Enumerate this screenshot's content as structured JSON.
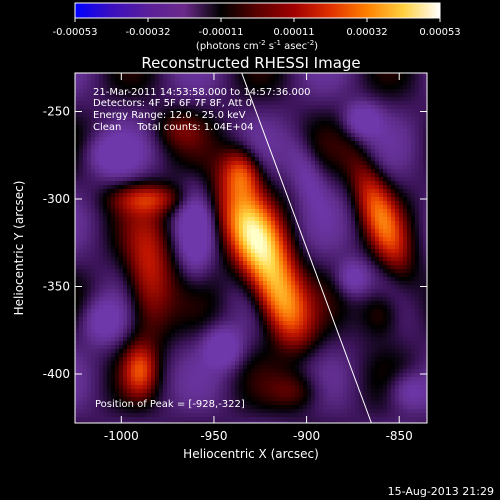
{
  "colorbar": {
    "ticks": [
      "-0.00053",
      "-0.00032",
      "-0.00011",
      "0.00011",
      "0.00032",
      "0.00053"
    ],
    "units_prefix": "(photons cm",
    "units_exp1": "-2",
    "units_mid1": " s",
    "units_exp2": "-1",
    "units_mid2": " asec",
    "units_exp3": "-2",
    "units_suffix": ")",
    "gradient": [
      "#0000ff",
      "#3b0fbf",
      "#5a1f9a",
      "#6b2a8a",
      "#000000",
      "#5a0000",
      "#a00000",
      "#e03000",
      "#ff8000",
      "#ffd040",
      "#ffffff"
    ]
  },
  "chart_data": {
    "type": "heatmap",
    "title": "Reconstructed RHESSI Image",
    "xlabel": "Heliocentric X (arcsec)",
    "ylabel": "Heliocentric Y (arcsec)",
    "xlim": [
      -1025,
      -835
    ],
    "ylim": [
      -428,
      -228
    ],
    "xticks": [
      -1000,
      -950,
      -900,
      -850
    ],
    "yticks": [
      -400,
      -350,
      -300,
      -250
    ],
    "xtick_labels": [
      "-1000",
      "-950",
      "-900",
      "-850"
    ],
    "ytick_labels": [
      "-400",
      "-350",
      "-300",
      "-250"
    ],
    "color_range": [
      -0.00053,
      0.00053
    ],
    "sources": [
      {
        "x": -928,
        "y": -322,
        "sx": 10,
        "sy": 22,
        "rot": -25,
        "amp": 1.0
      },
      {
        "x": -913,
        "y": -360,
        "sx": 9,
        "sy": 18,
        "rot": -20,
        "amp": 0.75
      },
      {
        "x": -935,
        "y": -285,
        "sx": 7,
        "sy": 10,
        "rot": -10,
        "amp": 0.55
      },
      {
        "x": -860,
        "y": -310,
        "sx": 7,
        "sy": 25,
        "rot": -20,
        "amp": 0.6
      },
      {
        "x": -985,
        "y": -345,
        "sx": 9,
        "sy": 25,
        "rot": 0,
        "amp": 0.5
      },
      {
        "x": -990,
        "y": -398,
        "sx": 6,
        "sy": 10,
        "rot": 0,
        "amp": 0.45
      },
      {
        "x": -985,
        "y": -300,
        "sx": 14,
        "sy": 6,
        "rot": 0,
        "amp": 0.4
      },
      {
        "x": -860,
        "y": -365,
        "sx": 8,
        "sy": 10,
        "rot": 0,
        "amp": 0.3
      },
      {
        "x": -970,
        "y": -260,
        "sx": 10,
        "sy": 8,
        "rot": 0,
        "amp": 0.2
      },
      {
        "x": -905,
        "y": -410,
        "sx": 10,
        "sy": 8,
        "rot": 0,
        "amp": 0.25
      },
      {
        "x": -870,
        "y": -255,
        "sx": 7,
        "sy": 7,
        "rot": 0,
        "amp": -0.35
      },
      {
        "x": -945,
        "y": -385,
        "sx": 7,
        "sy": 8,
        "rot": 0,
        "amp": -0.4
      },
      {
        "x": -1010,
        "y": -370,
        "sx": 8,
        "sy": 9,
        "rot": 0,
        "amp": -0.3
      },
      {
        "x": -875,
        "y": -345,
        "sx": 6,
        "sy": 7,
        "rot": 0,
        "amp": -0.3
      },
      {
        "x": -1005,
        "y": -275,
        "sx": 10,
        "sy": 8,
        "rot": 0,
        "amp": -0.3
      },
      {
        "x": -960,
        "y": -320,
        "sx": 6,
        "sy": 18,
        "rot": 0,
        "amp": -0.3
      },
      {
        "x": -900,
        "y": -285,
        "sx": 6,
        "sy": 14,
        "rot": -20,
        "amp": -0.25
      },
      {
        "x": -845,
        "y": -410,
        "sx": 8,
        "sy": 8,
        "rot": 0,
        "amp": -0.3
      }
    ],
    "limb_line": {
      "x": [
        -935,
        -865
      ],
      "y": [
        -228,
        -428
      ]
    },
    "annotations": [
      "21-Mar-2011 14:53:58.000 to 14:57:36.000",
      "Detectors: 4F 5F 6F 7F 8F, Att 0",
      "Energy Range: 12.0 - 25.0 keV",
      "Clean     Total counts: 1.04E+04",
      "Position of Peak = [-928,-322]"
    ]
  },
  "footer": "15-Aug-2013 21:29"
}
